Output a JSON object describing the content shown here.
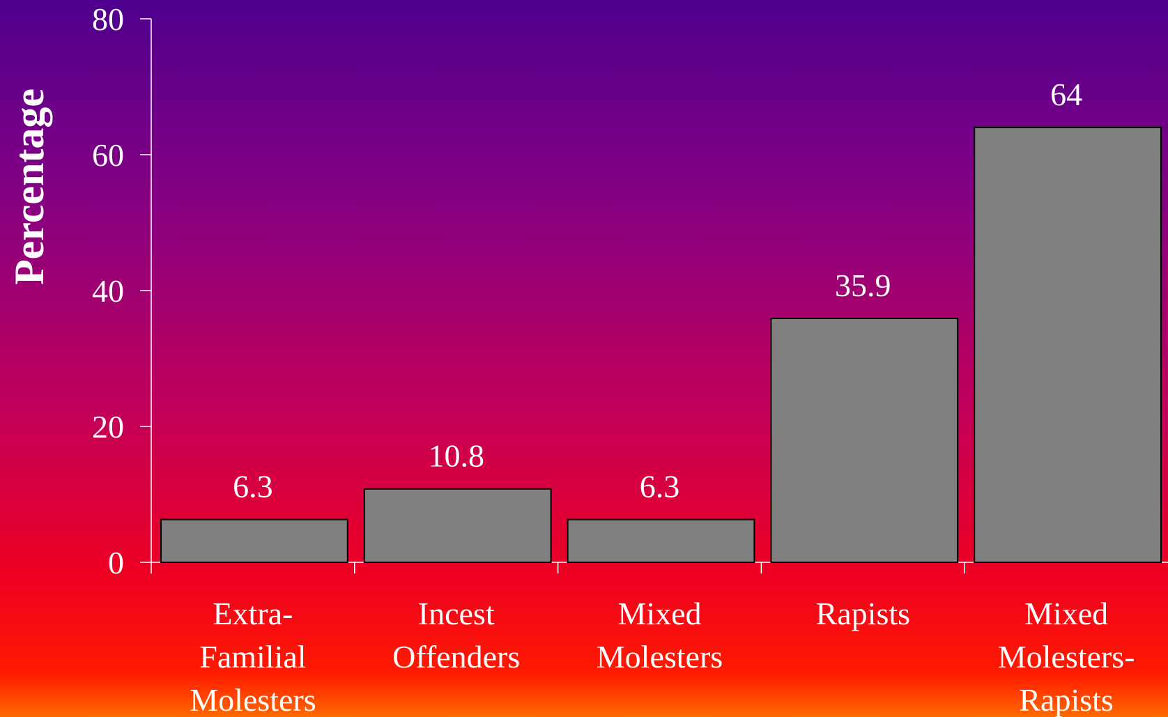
{
  "chart_data": {
    "type": "bar",
    "title": "",
    "xlabel": "",
    "ylabel": "Percentage",
    "ylim": [
      0,
      80
    ],
    "yticks": [
      0,
      20,
      40,
      60,
      80
    ],
    "grid": false,
    "legend": "none",
    "categories": [
      [
        "Extra-",
        "Familial",
        "Molesters"
      ],
      [
        "Incest",
        "Offenders"
      ],
      [
        "Mixed",
        "Molesters"
      ],
      [
        "Rapists"
      ],
      [
        "Mixed",
        "Molesters-",
        "Rapists"
      ]
    ],
    "values": [
      6.3,
      10.8,
      6.3,
      35.9,
      64
    ],
    "data_labels": [
      "6.3",
      "10.8",
      "6.3",
      "35.9",
      "64"
    ],
    "colors": {
      "bar_fill": "#808080",
      "bar_stroke": "#000000",
      "axis": "#ffffff",
      "text": "#ffffff"
    }
  }
}
